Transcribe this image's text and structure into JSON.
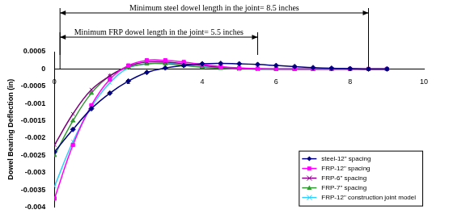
{
  "chart_data": {
    "type": "line",
    "y_label": "Dowel Bearing Deflection (in)",
    "x": [
      0,
      0.5,
      1,
      1.5,
      2,
      2.5,
      3,
      3.5,
      4,
      4.5,
      5,
      5.5,
      6,
      6.5,
      7,
      7.5,
      8,
      8.5,
      9
    ],
    "series": [
      {
        "name": "steel-12\" spacing",
        "color": "#000080",
        "marker": "diamond",
        "values": [
          -0.0024,
          -0.00175,
          -0.00115,
          -0.0007,
          -0.00035,
          -0.0001,
          3e-05,
          0.0001,
          0.00015,
          0.00016,
          0.00015,
          0.00013,
          0.0001,
          7e-05,
          4e-05,
          2e-05,
          1e-05,
          0,
          0
        ]
      },
      {
        "name": "FRP-12\" spacing",
        "color": "#ff00ff",
        "marker": "square",
        "values": [
          -0.00375,
          -0.0022,
          -0.00105,
          -0.0003,
          0.0001,
          0.00025,
          0.00025,
          0.0002,
          0.00013,
          7e-05,
          3e-05,
          1e-05,
          0,
          0,
          0,
          0,
          0,
          0,
          0
        ]
      },
      {
        "name": "FRP-6\" spacing",
        "color": "#800080",
        "marker": "x",
        "values": [
          -0.0022,
          -0.0013,
          -0.0006,
          -0.0002,
          8e-05,
          0.0002,
          0.0002,
          0.00015,
          0.0001,
          5e-05,
          2e-05,
          0,
          0,
          0,
          0,
          0,
          0,
          0,
          0
        ]
      },
      {
        "name": "FRP-7\" spacing",
        "color": "#339933",
        "marker": "triangle",
        "values": [
          -0.0025,
          -0.0015,
          -0.0007,
          -0.0002,
          5e-05,
          0.00015,
          0.00015,
          0.0001,
          5e-05,
          2e-05,
          0,
          0,
          0,
          0,
          0,
          0,
          0,
          0,
          0
        ]
      },
      {
        "name": "FRP-12\" construction joint model",
        "color": "#33ccff",
        "marker": "x",
        "values": [
          -0.0034,
          -0.0021,
          -0.0011,
          -0.0004,
          3e-05,
          0.00015,
          0.00018,
          0.00012,
          6e-05,
          3e-05,
          1e-05,
          0,
          0,
          0,
          0,
          0,
          0,
          0,
          0
        ]
      }
    ],
    "xlim": [
      0,
      10
    ],
    "xticks": [
      0,
      2,
      4,
      6,
      8,
      10
    ],
    "ylim": [
      -0.004,
      0.0005
    ],
    "yticks": [
      -0.004,
      -0.0035,
      -0.003,
      -0.0025,
      -0.002,
      -0.0015,
      -0.001,
      -0.0005,
      0,
      0.0005
    ],
    "grid": false,
    "legend": "lower right",
    "annotations": [
      {
        "text": "Minimum steel dowel length in the joint= 8.5 inches",
        "x_start": 0.15,
        "x_end": 8.5
      },
      {
        "text": "Minimum FRP dowel length in the joint= 5.5 inches",
        "x_start": 0.15,
        "x_end": 5.5
      }
    ]
  }
}
